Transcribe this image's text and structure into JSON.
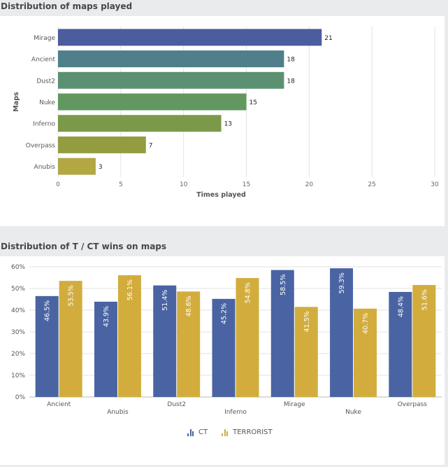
{
  "sections": {
    "maps_title": "Distribution of maps played",
    "wins_title": "Distribution of T / CT wins on maps"
  },
  "colors": {
    "ct": "#4a64a3",
    "terrorist": "#d2ad3d",
    "grid": "#e3e3e3"
  },
  "legend": [
    {
      "label": "CT",
      "color": "#4a64a3",
      "icon": "bar-chart-icon"
    },
    {
      "label": "TERRORIST",
      "color": "#d2ad3d",
      "icon": "bar-chart-icon"
    }
  ],
  "chart_data": [
    {
      "type": "bar",
      "orientation": "horizontal",
      "title": "Distribution of maps played",
      "xlabel": "Times played",
      "ylabel": "Maps",
      "categories": [
        "Mirage",
        "Ancient",
        "Dust2",
        "Nuke",
        "Inferno",
        "Overpass",
        "Anubis"
      ],
      "values": [
        21,
        18,
        18,
        15,
        13,
        7,
        3
      ],
      "bar_colors": [
        "#4b5d9d",
        "#4f7f8b",
        "#5b9172",
        "#62985f",
        "#7a9a49",
        "#949c40",
        "#b3a743"
      ],
      "xlim": [
        0,
        30
      ],
      "xticks": [
        0,
        5,
        10,
        15,
        20,
        25,
        30
      ],
      "grid": true,
      "data_labels": true
    },
    {
      "type": "bar",
      "orientation": "vertical",
      "title": "Distribution of T / CT wins on maps",
      "categories": [
        "Ancient",
        "Anubis",
        "Dust2",
        "Inferno",
        "Mirage",
        "Nuke",
        "Overpass"
      ],
      "series": [
        {
          "name": "CT",
          "values": [
            46.5,
            43.9,
            51.4,
            45.2,
            58.5,
            59.3,
            48.4
          ],
          "labels": [
            "46.5%",
            "43.9%",
            "51.4%",
            "45.2%",
            "58.5%",
            "59.3%",
            "48.4%"
          ]
        },
        {
          "name": "TERRORIST",
          "values": [
            53.5,
            56.1,
            48.6,
            54.8,
            41.5,
            40.7,
            51.6
          ],
          "labels": [
            "53.5%",
            "56.1%",
            "48.6%",
            "54.8%",
            "41.5%",
            "40.7%",
            "51.6%"
          ]
        }
      ],
      "ylim": [
        0,
        60
      ],
      "yticks": [
        "0%",
        "10%",
        "20%",
        "30%",
        "40%",
        "50%",
        "60%"
      ],
      "grid": true,
      "legend_position": "bottom-center",
      "category_labels_staggered": true
    }
  ]
}
